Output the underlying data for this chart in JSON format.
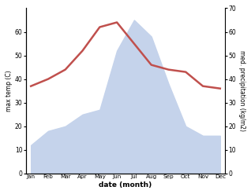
{
  "months": [
    "Jan",
    "Feb",
    "Mar",
    "Apr",
    "May",
    "Jun",
    "Jul",
    "Aug",
    "Sep",
    "Oct",
    "Nov",
    "Dec"
  ],
  "temp": [
    37,
    40,
    44,
    52,
    62,
    64,
    55,
    46,
    44,
    43,
    37,
    36
  ],
  "precip": [
    12,
    18,
    20,
    25,
    27,
    52,
    65,
    58,
    38,
    20,
    16,
    16
  ],
  "temp_color": "#c0504d",
  "precip_fill_color": "#c5d3eb",
  "ylabel_left": "max temp (C)",
  "ylabel_right": "med. precipitation (kg/m2)",
  "xlabel": "date (month)",
  "ylim_left": [
    0,
    70
  ],
  "ylim_right": [
    0,
    70
  ],
  "yticks_left": [
    0,
    10,
    20,
    30,
    40,
    50,
    60
  ],
  "yticks_right": [
    0,
    10,
    20,
    30,
    40,
    50,
    60,
    70
  ],
  "background_color": "#ffffff"
}
